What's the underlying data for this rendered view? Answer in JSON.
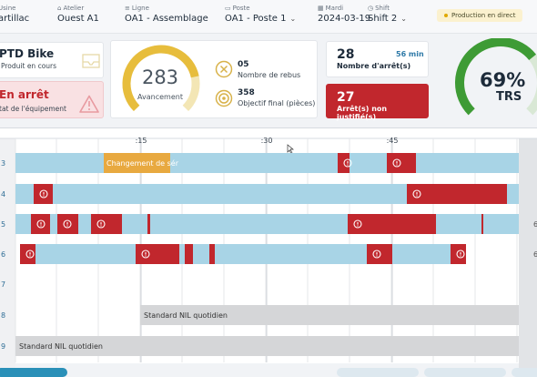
{
  "header": {
    "usine": {
      "label": "Usine",
      "value": "artillac"
    },
    "atelier": {
      "label": "Atelier",
      "value": "Ouest A1"
    },
    "ligne": {
      "label": "Ligne",
      "value": "OA1 - Assemblage"
    },
    "poste": {
      "label": "Poste",
      "value": "OA1 - Poste 1"
    },
    "date": {
      "label": "Mardi",
      "value": "2024-03-19"
    },
    "shift": {
      "label": "Shift",
      "value": "Shift 2"
    },
    "status": "Production en direct"
  },
  "product": {
    "name": "PTD Bike",
    "sub": "Produit en cours"
  },
  "state": {
    "title": "En arrêt",
    "sub": "tat de l'équipement"
  },
  "progress": {
    "value": "283",
    "label": "Avancement",
    "fraction": 0.79
  },
  "rebus": {
    "value": "05",
    "label": "Nombre de rebus"
  },
  "objectif": {
    "value": "358",
    "label": "Objectif final (pièces)"
  },
  "arrets": {
    "value": "28",
    "label": "Nombre d'arrêt(s)",
    "duration": "56 min"
  },
  "nonjust": {
    "value": "27",
    "label": "Arrêt(s) non justifié(s)"
  },
  "trs": {
    "value": "69%",
    "label": "TRS",
    "fraction": 0.69
  },
  "timeline": {
    "ticks": [
      ":15",
      ":30",
      ":45"
    ],
    "rows": [
      "3",
      "4",
      "5",
      "6",
      "7",
      "8",
      "9"
    ],
    "right_labels": [
      "",
      "",
      "6",
      "6",
      "",
      "",
      ""
    ],
    "changeover_label": "Changement de sér",
    "std_label_8": "Standard NIL quotidien",
    "std_label_9": "Standard NIL quotidien"
  },
  "colors": {
    "running": "#a8d4e6",
    "stop": "#c1272d",
    "changeover": "#e8a940",
    "std": "#d5d6d8",
    "trs": "#3e9b35"
  }
}
